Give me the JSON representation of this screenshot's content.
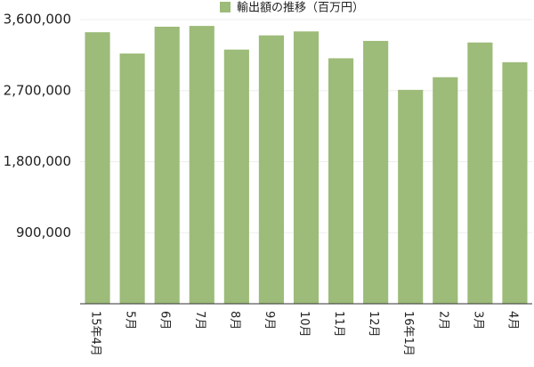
{
  "chart_data": {
    "type": "bar",
    "categories": [
      "15年4月",
      "5月",
      "6月",
      "7月",
      "8月",
      "9月",
      "10月",
      "11月",
      "12月",
      "16年1月",
      "2月",
      "3月",
      "4月"
    ],
    "series": [
      {
        "name": "輸出額の推移（百万円）",
        "color": "#9dbb79",
        "values": [
          3440000,
          3170000,
          3510000,
          3520000,
          3220000,
          3400000,
          3450000,
          3110000,
          3330000,
          2710000,
          2870000,
          3310000,
          3060000
        ]
      }
    ],
    "ylim": [
      0,
      3600000
    ],
    "yticks": [
      {
        "value": 900000,
        "label": "900,000"
      },
      {
        "value": 1800000,
        "label": "1,800,000"
      },
      {
        "value": 2700000,
        "label": "2,700,000"
      },
      {
        "value": 3600000,
        "label": "3,600,000"
      }
    ],
    "grid": true,
    "legend": "top"
  }
}
